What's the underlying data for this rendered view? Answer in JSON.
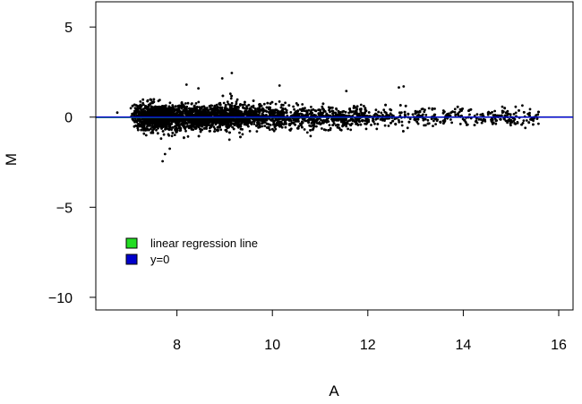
{
  "chart_data": {
    "type": "scatter",
    "title": "",
    "xlabel": "A",
    "ylabel": "M",
    "xlim": [
      6.3,
      16.3
    ],
    "ylim": [
      -10.7,
      6.4
    ],
    "xticks": [
      8,
      10,
      12,
      14,
      16
    ],
    "yticks": [
      5,
      0,
      -5,
      -10
    ],
    "xtick_labels": [
      "8",
      "10",
      "12",
      "14",
      "16"
    ],
    "ytick_labels": [
      "5",
      "0",
      "−5",
      "−10"
    ],
    "grid": false,
    "legend_position": "bottom-left",
    "lines": [
      {
        "name": "linear regression line",
        "color": "#22dd22",
        "intercept": -0.03,
        "slope": 0.002
      },
      {
        "name": "y=0",
        "color": "#0000cc",
        "intercept": 0,
        "slope": 0
      }
    ],
    "series": [
      {
        "name": "points",
        "color": "#000000",
        "point_count": 4200,
        "dense_region": {
          "x_range": [
            6.8,
            15.8
          ],
          "y_center": 0,
          "y_spread_low_A": 0.8,
          "y_spread_high_A": 0.5
        },
        "notable_points": [
          [
            9.15,
            2.45
          ],
          [
            8.2,
            1.8
          ],
          [
            8.45,
            1.6
          ],
          [
            8.95,
            2.15
          ],
          [
            10.15,
            1.75
          ],
          [
            11.55,
            1.45
          ],
          [
            12.65,
            1.65
          ],
          [
            12.75,
            1.7
          ],
          [
            7.75,
            -2.05
          ],
          [
            7.7,
            -2.45
          ],
          [
            7.85,
            -1.75
          ],
          [
            9.1,
            -1.25
          ],
          [
            10.8,
            -1.05
          ],
          [
            6.75,
            0.25
          ],
          [
            15.3,
            -0.6
          ]
        ]
      }
    ]
  }
}
